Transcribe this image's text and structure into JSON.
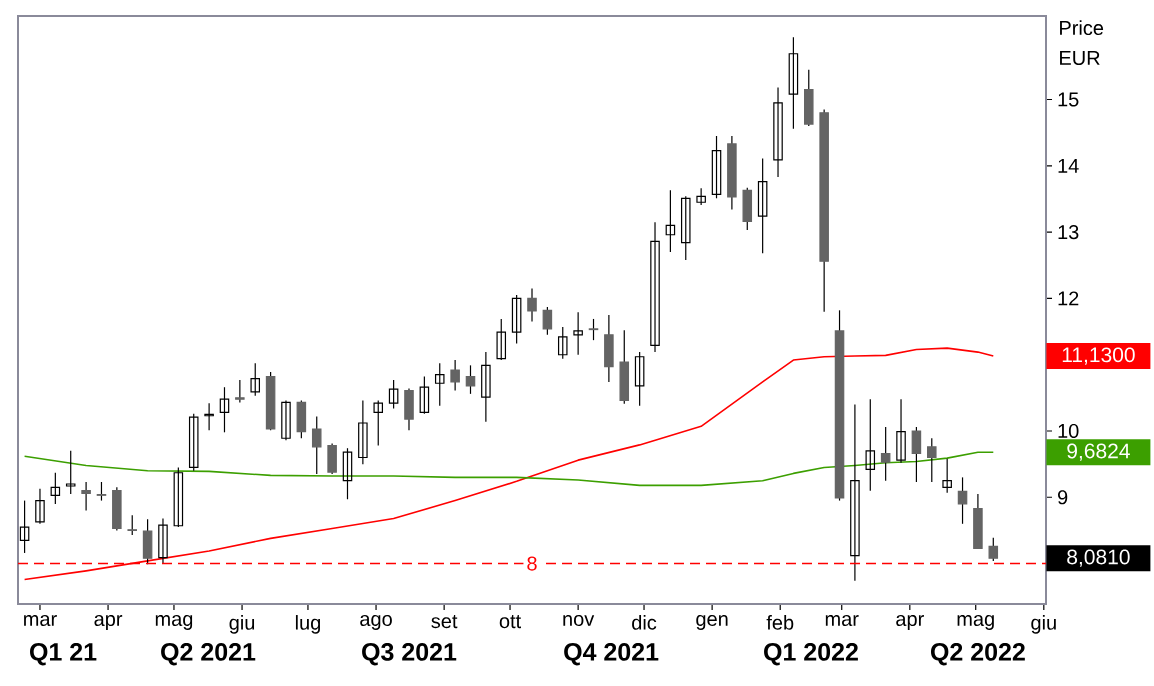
{
  "chart_data": {
    "type": "candlestick",
    "ylabel": "Price EUR",
    "colors": [
      "#000000",
      "#000000",
      "#000000",
      "#000000",
      "#646464",
      "#646464",
      "#646464",
      "#646464",
      "#646464",
      "#000000",
      "#000000",
      "#000000",
      "#000000",
      "#000000",
      "#646464",
      "#000000",
      "#646464",
      "#000000",
      "#646464",
      "#646464",
      "#646464",
      "#000000",
      "#000000",
      "#000000",
      "#000000",
      "#646464",
      "#000000",
      "#000000",
      "#646464",
      "#646464",
      "#000000",
      "#000000",
      "#000000",
      "#646464",
      "#646464",
      "#000000",
      "#000000",
      "#646464",
      "#646464",
      "#646464",
      "#000000",
      "#000000",
      "#000000",
      "#000000",
      "#000000",
      "#000000",
      "#646464",
      "#646464",
      "#000000",
      "#000000",
      "#000000",
      "#646464",
      "#646464",
      "#646464",
      "#000000",
      "#000000",
      "#646464",
      "#000000",
      "#646464",
      "#646464",
      "#000000",
      "#646464",
      "#646464",
      "#646464"
    ],
    "x": [
      "2021-02-22",
      "2021-03-01",
      "2021-03-08",
      "2021-03-15",
      "2021-03-22",
      "2021-03-29",
      "2021-04-05",
      "2021-04-12",
      "2021-04-19",
      "2021-04-26",
      "2021-05-03",
      "2021-05-10",
      "2021-05-17",
      "2021-05-24",
      "2021-05-31",
      "2021-06-07",
      "2021-06-14",
      "2021-06-21",
      "2021-06-28",
      "2021-07-05",
      "2021-07-12",
      "2021-07-19",
      "2021-07-26",
      "2021-08-02",
      "2021-08-09",
      "2021-08-16",
      "2021-08-23",
      "2021-08-30",
      "2021-09-06",
      "2021-09-13",
      "2021-09-20",
      "2021-09-27",
      "2021-10-04",
      "2021-10-11",
      "2021-10-18",
      "2021-10-25",
      "2021-11-01",
      "2021-11-08",
      "2021-11-15",
      "2021-11-22",
      "2021-11-29",
      "2021-12-06",
      "2021-12-13",
      "2021-12-20",
      "2021-12-27",
      "2022-01-03",
      "2022-01-10",
      "2022-01-17",
      "2022-01-24",
      "2022-01-31",
      "2022-02-07",
      "2022-02-14",
      "2022-02-21",
      "2022-02-28",
      "2022-03-07",
      "2022-03-14",
      "2022-03-21",
      "2022-03-28",
      "2022-04-04",
      "2022-04-11",
      "2022-04-18",
      "2022-04-25",
      "2022-05-02",
      "2022-05-09"
    ],
    "ohlc": [
      [
        8.35,
        8.95,
        8.16,
        8.55
      ],
      [
        8.63,
        9.13,
        8.6,
        8.95
      ],
      [
        9.03,
        9.37,
        8.9,
        9.15
      ],
      [
        9.17,
        9.7,
        9.05,
        9.2
      ],
      [
        9.1,
        9.23,
        8.8,
        9.06
      ],
      [
        9.03,
        9.23,
        8.95,
        9.04
      ],
      [
        9.1,
        9.15,
        8.5,
        8.53
      ],
      [
        8.5,
        8.73,
        8.43,
        8.51
      ],
      [
        8.49,
        8.67,
        7.99,
        8.08
      ],
      [
        8.09,
        8.68,
        8.01,
        8.58
      ],
      [
        8.57,
        9.45,
        8.55,
        9.37
      ],
      [
        9.45,
        10.26,
        9.4,
        10.21
      ],
      [
        10.23,
        10.42,
        10.01,
        10.25
      ],
      [
        10.28,
        10.66,
        9.98,
        10.48
      ],
      [
        10.5,
        10.77,
        10.43,
        10.48
      ],
      [
        10.59,
        11.02,
        10.53,
        10.79
      ],
      [
        10.82,
        10.89,
        10.01,
        10.03
      ],
      [
        9.89,
        10.46,
        9.86,
        10.43
      ],
      [
        10.43,
        10.46,
        9.89,
        9.99
      ],
      [
        10.03,
        10.22,
        9.35,
        9.76
      ],
      [
        9.78,
        9.81,
        9.35,
        9.38
      ],
      [
        9.25,
        9.74,
        8.97,
        9.68
      ],
      [
        9.6,
        10.46,
        9.5,
        10.12
      ],
      [
        10.28,
        10.46,
        9.78,
        10.42
      ],
      [
        10.42,
        10.77,
        10.34,
        10.63
      ],
      [
        10.61,
        10.64,
        10.01,
        10.18
      ],
      [
        10.28,
        10.82,
        10.26,
        10.66
      ],
      [
        10.72,
        11.02,
        10.38,
        10.85
      ],
      [
        10.92,
        11.07,
        10.61,
        10.74
      ],
      [
        10.82,
        10.99,
        10.56,
        10.68
      ],
      [
        10.51,
        11.19,
        10.14,
        10.99
      ],
      [
        11.09,
        11.69,
        11.07,
        11.49
      ],
      [
        11.49,
        12.05,
        11.32,
        12.0
      ],
      [
        12.0,
        12.15,
        11.65,
        11.81
      ],
      [
        11.82,
        11.87,
        11.45,
        11.54
      ],
      [
        11.15,
        11.57,
        11.09,
        11.42
      ],
      [
        11.45,
        11.79,
        11.15,
        11.51
      ],
      [
        11.54,
        11.69,
        11.37,
        11.53
      ],
      [
        11.45,
        11.75,
        10.74,
        10.97
      ],
      [
        11.04,
        11.52,
        10.41,
        10.46
      ],
      [
        10.68,
        11.19,
        10.38,
        11.12
      ],
      [
        11.29,
        13.15,
        11.19,
        12.86
      ],
      [
        12.96,
        13.63,
        12.7,
        13.1
      ],
      [
        12.84,
        13.54,
        12.58,
        13.51
      ],
      [
        13.45,
        13.66,
        13.41,
        13.54
      ],
      [
        13.57,
        14.45,
        13.51,
        14.23
      ],
      [
        14.33,
        14.45,
        13.34,
        13.53
      ],
      [
        13.63,
        13.67,
        13.03,
        13.16
      ],
      [
        13.24,
        14.11,
        12.68,
        13.76
      ],
      [
        14.09,
        15.18,
        13.83,
        14.95
      ],
      [
        15.08,
        15.94,
        14.56,
        15.69
      ],
      [
        15.15,
        15.45,
        14.6,
        14.63
      ],
      [
        14.8,
        14.85,
        11.8,
        12.56
      ],
      [
        11.51,
        11.82,
        8.95,
        8.99
      ],
      [
        8.12,
        10.4,
        7.74,
        9.25
      ],
      [
        9.42,
        10.48,
        9.1,
        9.7
      ],
      [
        9.66,
        10.06,
        9.25,
        9.53
      ],
      [
        9.56,
        10.48,
        9.52,
        9.99
      ],
      [
        10.0,
        10.06,
        9.23,
        9.66
      ],
      [
        9.76,
        9.89,
        9.23,
        9.6
      ],
      [
        9.15,
        9.58,
        9.07,
        9.25
      ],
      [
        9.09,
        9.3,
        8.6,
        8.9
      ],
      [
        8.83,
        9.05,
        8.22,
        8.23
      ],
      [
        8.26,
        8.39,
        8.04,
        8.081
      ]
    ],
    "series": [
      {
        "type": "line",
        "color": "#ff0000",
        "x": [
          "2021-02-22",
          "2021-03-22",
          "2021-04-19",
          "2021-05-17",
          "2021-06-14",
          "2021-07-12",
          "2021-08-09",
          "2021-09-06",
          "2021-10-04",
          "2021-11-01",
          "2021-11-29",
          "2021-12-27",
          "2022-01-24",
          "2022-02-07",
          "2022-02-21",
          "2022-03-07",
          "2022-03-21",
          "2022-04-04",
          "2022-04-18",
          "2022-05-02",
          "2022-05-09"
        ],
        "values": [
          7.76,
          7.89,
          8.04,
          8.19,
          8.38,
          8.53,
          8.68,
          8.95,
          9.24,
          9.56,
          9.79,
          10.07,
          10.74,
          11.07,
          11.12,
          11.13,
          11.14,
          11.23,
          11.25,
          11.19,
          11.13
        ]
      },
      {
        "type": "line",
        "color": "#3c9f00",
        "x": [
          "2021-02-22",
          "2021-03-22",
          "2021-04-19",
          "2021-05-17",
          "2021-06-14",
          "2021-07-12",
          "2021-08-09",
          "2021-09-06",
          "2021-10-04",
          "2021-11-01",
          "2021-11-29",
          "2021-12-27",
          "2022-01-24",
          "2022-02-07",
          "2022-02-21",
          "2022-03-07",
          "2022-03-21",
          "2022-04-04",
          "2022-04-18",
          "2022-05-02",
          "2022-05-09"
        ],
        "values": [
          9.62,
          9.48,
          9.4,
          9.39,
          9.33,
          9.32,
          9.32,
          9.3,
          9.3,
          9.26,
          9.18,
          9.18,
          9.25,
          9.36,
          9.45,
          9.48,
          9.52,
          9.54,
          9.59,
          9.68,
          9.68
        ]
      }
    ],
    "xlim": [
      "2021-02-19",
      "2022-06-02"
    ],
    "xticks": [
      {
        "value": "2021-03-01",
        "label": "mar"
      },
      {
        "value": "2021-04-01",
        "label": "apr"
      },
      {
        "value": "2021-05-01",
        "label": "mag"
      },
      {
        "value": "2021-06-01",
        "label": "giu"
      },
      {
        "value": "2021-07-01",
        "label": "lug"
      },
      {
        "value": "2021-08-01",
        "label": "ago"
      },
      {
        "value": "2021-09-01",
        "label": "set"
      },
      {
        "value": "2021-10-01",
        "label": "ott"
      },
      {
        "value": "2021-11-01",
        "label": "nov"
      },
      {
        "value": "2021-12-01",
        "label": "dic"
      },
      {
        "value": "2022-01-01",
        "label": "gen"
      },
      {
        "value": "2022-02-01",
        "label": "feb"
      },
      {
        "value": "2022-03-01",
        "label": "mar"
      },
      {
        "value": "2022-04-01",
        "label": "apr"
      },
      {
        "value": "2022-05-01",
        "label": "mag"
      },
      {
        "value": "2022-06-01",
        "label": "giu"
      }
    ],
    "ylim": [
      7.39,
      16.26
    ],
    "yticks": [
      9,
      10,
      12,
      13,
      14,
      15
    ],
    "ref_lines": [
      {
        "axis": "y",
        "value": 8,
        "label": "8",
        "color": "#ff0000",
        "line_style": "dashed"
      }
    ],
    "annotations": [
      "Q1 21",
      "Q2 2021",
      "Q3 2021",
      "Q4 2021",
      "Q1 2022",
      "Q2 2022",
      "11,1300",
      "9,6824",
      {
        "text": "8,0810",
        "x": "2022-06-02",
        "y": 8.081
      }
    ]
  }
}
